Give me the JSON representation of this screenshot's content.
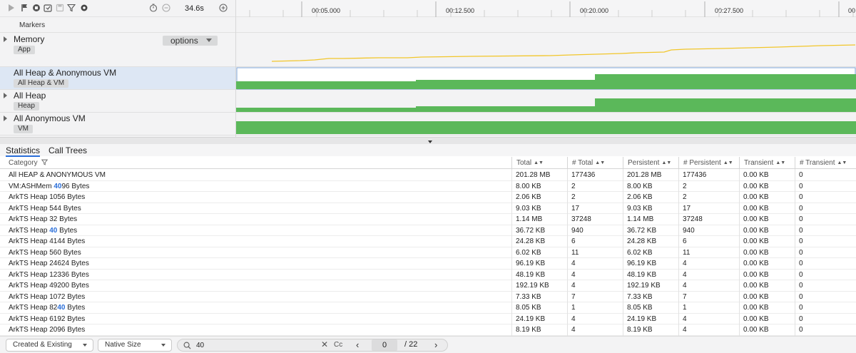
{
  "toolbar": {
    "icons": [
      "record-icon",
      "flag-icon",
      "stop-icon",
      "capture-icon",
      "save-icon",
      "filter-icon",
      "settings-icon",
      "timer-icon",
      "zoom-out-icon",
      "zoom-in-icon"
    ],
    "elapsed": "34.6s"
  },
  "markers": {
    "label": "Markers"
  },
  "tracks": {
    "memory": {
      "name": "Memory",
      "tag": "App",
      "options_label": "options"
    },
    "all_heap_vm": {
      "name": "All Heap & Anonymous VM",
      "tag": "All Heap & VM"
    },
    "all_heap": {
      "name": "All Heap",
      "tag": "Heap"
    },
    "anon_vm": {
      "name": "All Anonymous VM",
      "tag": "VM"
    }
  },
  "timeline": {
    "ticks": [
      "00:05.000",
      "00:12.500",
      "00:20.000",
      "00:27.500",
      "00"
    ],
    "memory_color": "#f2c62a",
    "bar_color": "#5bb85a",
    "selection_color": "#7ea4d8"
  },
  "tabs": {
    "statistics": "Statistics",
    "call_trees": "Call Trees"
  },
  "table": {
    "headers": {
      "category": "Category",
      "total": "Total",
      "count_total": "# Total",
      "persistent": "Persistent",
      "count_persistent": "# Persistent",
      "transient": "Transient",
      "count_transient": "# Transient"
    },
    "search_highlight": "40",
    "rows": [
      {
        "category": "All HEAP & ANONYMOUS VM",
        "total": "201.28 MB",
        "count_total": "177436",
        "persistent": "201.28 MB",
        "count_persistent": "177436",
        "transient": "0.00 KB",
        "count_transient": "0"
      },
      {
        "category": "VM:ASHMem 4096 Bytes",
        "total": "8.00 KB",
        "count_total": "2",
        "persistent": "8.00 KB",
        "count_persistent": "2",
        "transient": "0.00 KB",
        "count_transient": "0"
      },
      {
        "category": "ArkTS Heap 1056 Bytes",
        "total": "2.06 KB",
        "count_total": "2",
        "persistent": "2.06 KB",
        "count_persistent": "2",
        "transient": "0.00 KB",
        "count_transient": "0"
      },
      {
        "category": "ArkTS Heap 544 Bytes",
        "total": "9.03 KB",
        "count_total": "17",
        "persistent": "9.03 KB",
        "count_persistent": "17",
        "transient": "0.00 KB",
        "count_transient": "0"
      },
      {
        "category": "ArkTS Heap 32 Bytes",
        "total": "1.14 MB",
        "count_total": "37248",
        "persistent": "1.14 MB",
        "count_persistent": "37248",
        "transient": "0.00 KB",
        "count_transient": "0"
      },
      {
        "category": "ArkTS Heap 40 Bytes",
        "total": "36.72 KB",
        "count_total": "940",
        "persistent": "36.72 KB",
        "count_persistent": "940",
        "transient": "0.00 KB",
        "count_transient": "0"
      },
      {
        "category": "ArkTS Heap 4144 Bytes",
        "total": "24.28 KB",
        "count_total": "6",
        "persistent": "24.28 KB",
        "count_persistent": "6",
        "transient": "0.00 KB",
        "count_transient": "0"
      },
      {
        "category": "ArkTS Heap 560 Bytes",
        "total": "6.02 KB",
        "count_total": "11",
        "persistent": "6.02 KB",
        "count_persistent": "11",
        "transient": "0.00 KB",
        "count_transient": "0"
      },
      {
        "category": "ArkTS Heap 24624 Bytes",
        "total": "96.19 KB",
        "count_total": "4",
        "persistent": "96.19 KB",
        "count_persistent": "4",
        "transient": "0.00 KB",
        "count_transient": "0"
      },
      {
        "category": "ArkTS Heap 12336 Bytes",
        "total": "48.19 KB",
        "count_total": "4",
        "persistent": "48.19 KB",
        "count_persistent": "4",
        "transient": "0.00 KB",
        "count_transient": "0"
      },
      {
        "category": "ArkTS Heap 49200 Bytes",
        "total": "192.19 KB",
        "count_total": "4",
        "persistent": "192.19 KB",
        "count_persistent": "4",
        "transient": "0.00 KB",
        "count_transient": "0"
      },
      {
        "category": "ArkTS Heap 1072 Bytes",
        "total": "7.33 KB",
        "count_total": "7",
        "persistent": "7.33 KB",
        "count_persistent": "7",
        "transient": "0.00 KB",
        "count_transient": "0"
      },
      {
        "category": "ArkTS Heap 8240 Bytes",
        "total": "8.05 KB",
        "count_total": "1",
        "persistent": "8.05 KB",
        "count_persistent": "1",
        "transient": "0.00 KB",
        "count_transient": "0"
      },
      {
        "category": "ArkTS Heap 6192 Bytes",
        "total": "24.19 KB",
        "count_total": "4",
        "persistent": "24.19 KB",
        "count_persistent": "4",
        "transient": "0.00 KB",
        "count_transient": "0"
      },
      {
        "category": "ArkTS Heap 2096 Bytes",
        "total": "8.19 KB",
        "count_total": "4",
        "persistent": "8.19 KB",
        "count_persistent": "4",
        "transient": "0.00 KB",
        "count_transient": "0"
      }
    ]
  },
  "bottombar": {
    "filter_select": "Created & Existing",
    "size_select": "Native Size",
    "search_value": "40",
    "case_label": "Cc",
    "page_current": "0",
    "page_total": "/ 22"
  }
}
